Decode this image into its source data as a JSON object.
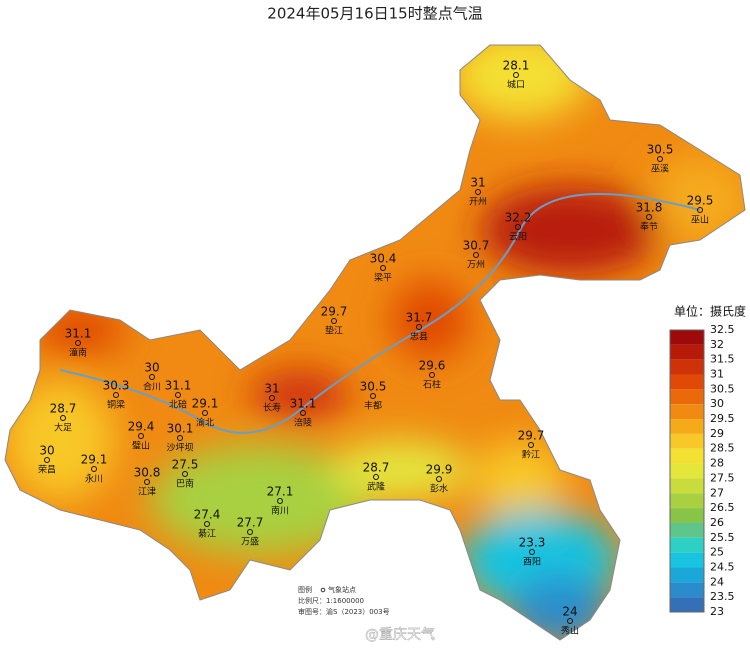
{
  "title": "2024年05月16日15时整点气温",
  "stations": [
    {
      "name": "城口",
      "value": 28.1
    },
    {
      "name": "巫溪",
      "value": 30.5
    },
    {
      "name": "开州",
      "value": 31
    },
    {
      "name": "巫山",
      "value": 29.5
    },
    {
      "name": "云阳",
      "value": 32.2
    },
    {
      "name": "奉节",
      "value": 31.8
    },
    {
      "name": "万州",
      "value": 30.7
    },
    {
      "name": "梁平",
      "value": 30.4
    },
    {
      "name": "垫江",
      "value": 29.7
    },
    {
      "name": "忠县",
      "value": 31.7
    },
    {
      "name": "潼南",
      "value": 31.1
    },
    {
      "name": "石柱",
      "value": 29.6
    },
    {
      "name": "合川",
      "value": 30
    },
    {
      "name": "铜梁",
      "value": 30.3
    },
    {
      "name": "北碚",
      "value": 31.1
    },
    {
      "name": "渝北",
      "value": 29.1
    },
    {
      "name": "长寿",
      "value": 31
    },
    {
      "name": "涪陵",
      "value": 31.1
    },
    {
      "name": "丰都",
      "value": 30.5
    },
    {
      "name": "大足",
      "value": 28.7
    },
    {
      "name": "璧山",
      "value": 29.4
    },
    {
      "name": "沙坪坝",
      "value": 30.1
    },
    {
      "name": "黔江",
      "value": 29.7
    },
    {
      "name": "荣昌",
      "value": 30
    },
    {
      "name": "永川",
      "value": 29.1
    },
    {
      "name": "巴南",
      "value": 27.5
    },
    {
      "name": "武隆",
      "value": 28.7
    },
    {
      "name": "彭水",
      "value": 29.9
    },
    {
      "name": "江津",
      "value": 30.8
    },
    {
      "name": "南川",
      "value": 27.1
    },
    {
      "name": "綦江",
      "value": 27.4
    },
    {
      "name": "万盛",
      "value": 27.7
    },
    {
      "name": "酉阳",
      "value": 23.3
    },
    {
      "name": "秀山",
      "value": 24
    }
  ],
  "legend": {
    "title": "单位：摄氏度",
    "levels": [
      32.5,
      32,
      31.5,
      31,
      30.5,
      30,
      29.5,
      29,
      28.5,
      28,
      27.5,
      27,
      26.5,
      26,
      25.5,
      25,
      24.5,
      24,
      23.5,
      23
    ],
    "colors": [
      "#9e0a0a",
      "#b81a0a",
      "#cf3208",
      "#e04a06",
      "#ea6a0a",
      "#f08a12",
      "#f5aa1a",
      "#f8c828",
      "#f4e030",
      "#e4e63c",
      "#c8dc3c",
      "#a8d040",
      "#88c448",
      "#5cc68c",
      "#2ecfc4",
      "#18c4e0",
      "#1aa8d8",
      "#2a8ccc",
      "#3470b8",
      "#3a5aa0"
    ]
  },
  "footnote": {
    "legend_label": "图例",
    "legend_item": "气象站点",
    "scale": "比例尺：1:1600000",
    "approval": "审图号：渝S（2023）003号"
  },
  "watermark": "@重庆天气"
}
